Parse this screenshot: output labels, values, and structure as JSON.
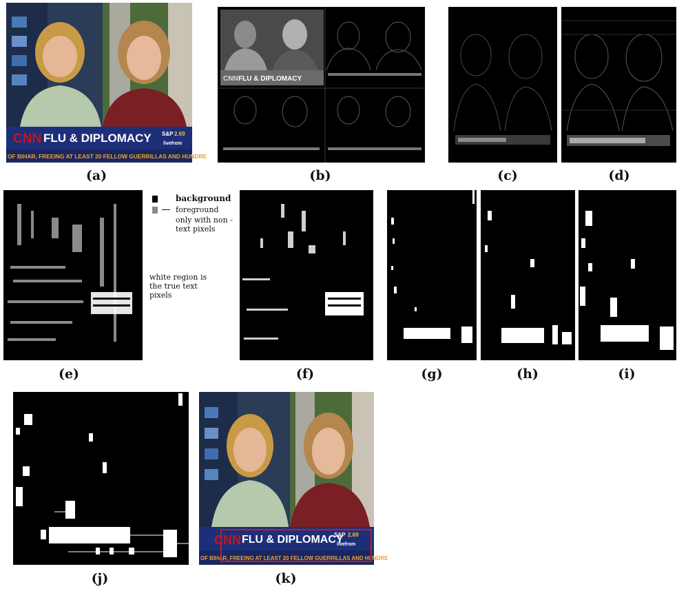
{
  "labels": {
    "a": "(a)",
    "b": "(b)",
    "c": "(c)",
    "d": "(d)",
    "e": "(e)",
    "f": "(f)",
    "g": "(g)",
    "h": "(h)",
    "i": "(i)",
    "j": "(j)",
    "k": "(k)"
  },
  "legend": {
    "background": "background",
    "foreground": "foreground",
    "foreground_note": "only with non -text pixels",
    "white_note": "white region is the true text pixels"
  },
  "news": {
    "logo": "CNN",
    "headline": "FLU & DIPLOMACY",
    "ticker_symbol": "S&P",
    "ticker_value": "2.69",
    "ticker_sub": "livefrom",
    "crawl": "OF BIHAR, FREEING AT LEAST 20 FELLOW GUERRILLAS AND HUNDRE"
  },
  "colors": {
    "banner_blue": "#1e2f7a",
    "crawl_orange": "#e8a23a",
    "cnn_red": "#c4161c",
    "box_red": "#d01818"
  }
}
